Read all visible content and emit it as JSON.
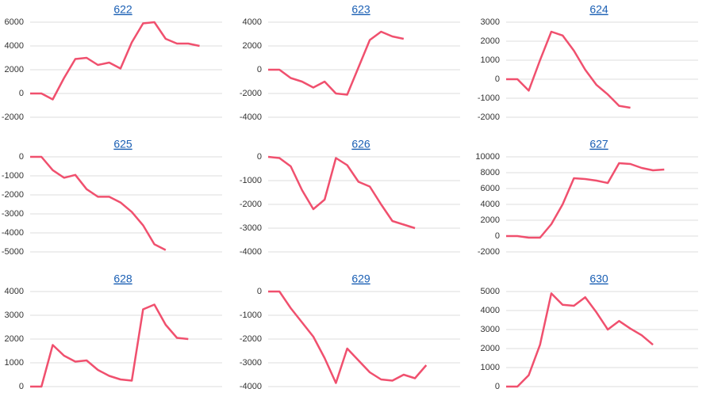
{
  "chart_data": [
    {
      "type": "line",
      "title": "622",
      "color": "#f0506e",
      "ylim": [
        -2000,
        6000
      ],
      "yticks": [
        -2000,
        0,
        2000,
        4000,
        6000
      ],
      "grid": true,
      "values": [
        0,
        0,
        -500,
        1300,
        2900,
        3000,
        2400,
        2600,
        2100,
        4300,
        5900,
        6000,
        4600,
        4200,
        4200,
        4000
      ]
    },
    {
      "type": "line",
      "title": "623",
      "color": "#f0506e",
      "ylim": [
        -4000,
        4000
      ],
      "yticks": [
        -4000,
        -2000,
        0,
        2000,
        4000
      ],
      "grid": true,
      "values": [
        0,
        0,
        -700,
        -1000,
        -1500,
        -1000,
        -2000,
        -2100,
        200,
        2500,
        3200,
        2800,
        2600
      ]
    },
    {
      "type": "line",
      "title": "624",
      "color": "#f0506e",
      "ylim": [
        -2000,
        3000
      ],
      "yticks": [
        -2000,
        -1000,
        0,
        1000,
        2000,
        3000
      ],
      "grid": true,
      "values": [
        0,
        0,
        -600,
        1000,
        2500,
        2300,
        1500,
        500,
        -300,
        -800,
        -1400,
        -1500
      ]
    },
    {
      "type": "line",
      "title": "625",
      "color": "#f0506e",
      "ylim": [
        -5000,
        0
      ],
      "yticks": [
        -5000,
        -4000,
        -3000,
        -2000,
        -1000,
        0
      ],
      "grid": true,
      "values": [
        0,
        0,
        -700,
        -1100,
        -950,
        -1700,
        -2100,
        -2100,
        -2400,
        -2900,
        -3600,
        -4600,
        -4900
      ]
    },
    {
      "type": "line",
      "title": "626",
      "color": "#f0506e",
      "ylim": [
        -4000,
        0
      ],
      "yticks": [
        -4000,
        -3000,
        -2000,
        -1000,
        0
      ],
      "grid": true,
      "values": [
        0,
        -50,
        -400,
        -1400,
        -2200,
        -1800,
        -50,
        -350,
        -1050,
        -1250,
        -2000,
        -2700,
        -2850,
        -3000
      ]
    },
    {
      "type": "line",
      "title": "627",
      "color": "#f0506e",
      "ylim": [
        -2000,
        10000
      ],
      "yticks": [
        -2000,
        0,
        2000,
        4000,
        6000,
        8000,
        10000
      ],
      "grid": true,
      "values": [
        0,
        0,
        -200,
        -200,
        1500,
        4000,
        7300,
        7200,
        7000,
        6700,
        9200,
        9100,
        8600,
        8300,
        8400
      ]
    },
    {
      "type": "line",
      "title": "628",
      "color": "#f0506e",
      "ylim": [
        0,
        4000
      ],
      "yticks": [
        0,
        1000,
        2000,
        3000,
        4000
      ],
      "grid": true,
      "values": [
        0,
        0,
        1750,
        1300,
        1050,
        1100,
        700,
        450,
        300,
        250,
        3250,
        3450,
        2600,
        2050,
        2000
      ]
    },
    {
      "type": "line",
      "title": "629",
      "color": "#f0506e",
      "ylim": [
        -4000,
        0
      ],
      "yticks": [
        -4000,
        -3000,
        -2000,
        -1000,
        0
      ],
      "grid": true,
      "values": [
        0,
        0,
        -700,
        -1300,
        -1900,
        -2800,
        -3850,
        -2400,
        -2900,
        -3400,
        -3700,
        -3750,
        -3500,
        -3650,
        -3100
      ]
    },
    {
      "type": "line",
      "title": "630",
      "color": "#f0506e",
      "ylim": [
        0,
        5000
      ],
      "yticks": [
        0,
        1000,
        2000,
        3000,
        4000,
        5000
      ],
      "grid": true,
      "values": [
        0,
        0,
        600,
        2200,
        4900,
        4300,
        4250,
        4700,
        3900,
        3000,
        3450,
        3050,
        2700,
        2200
      ]
    }
  ]
}
